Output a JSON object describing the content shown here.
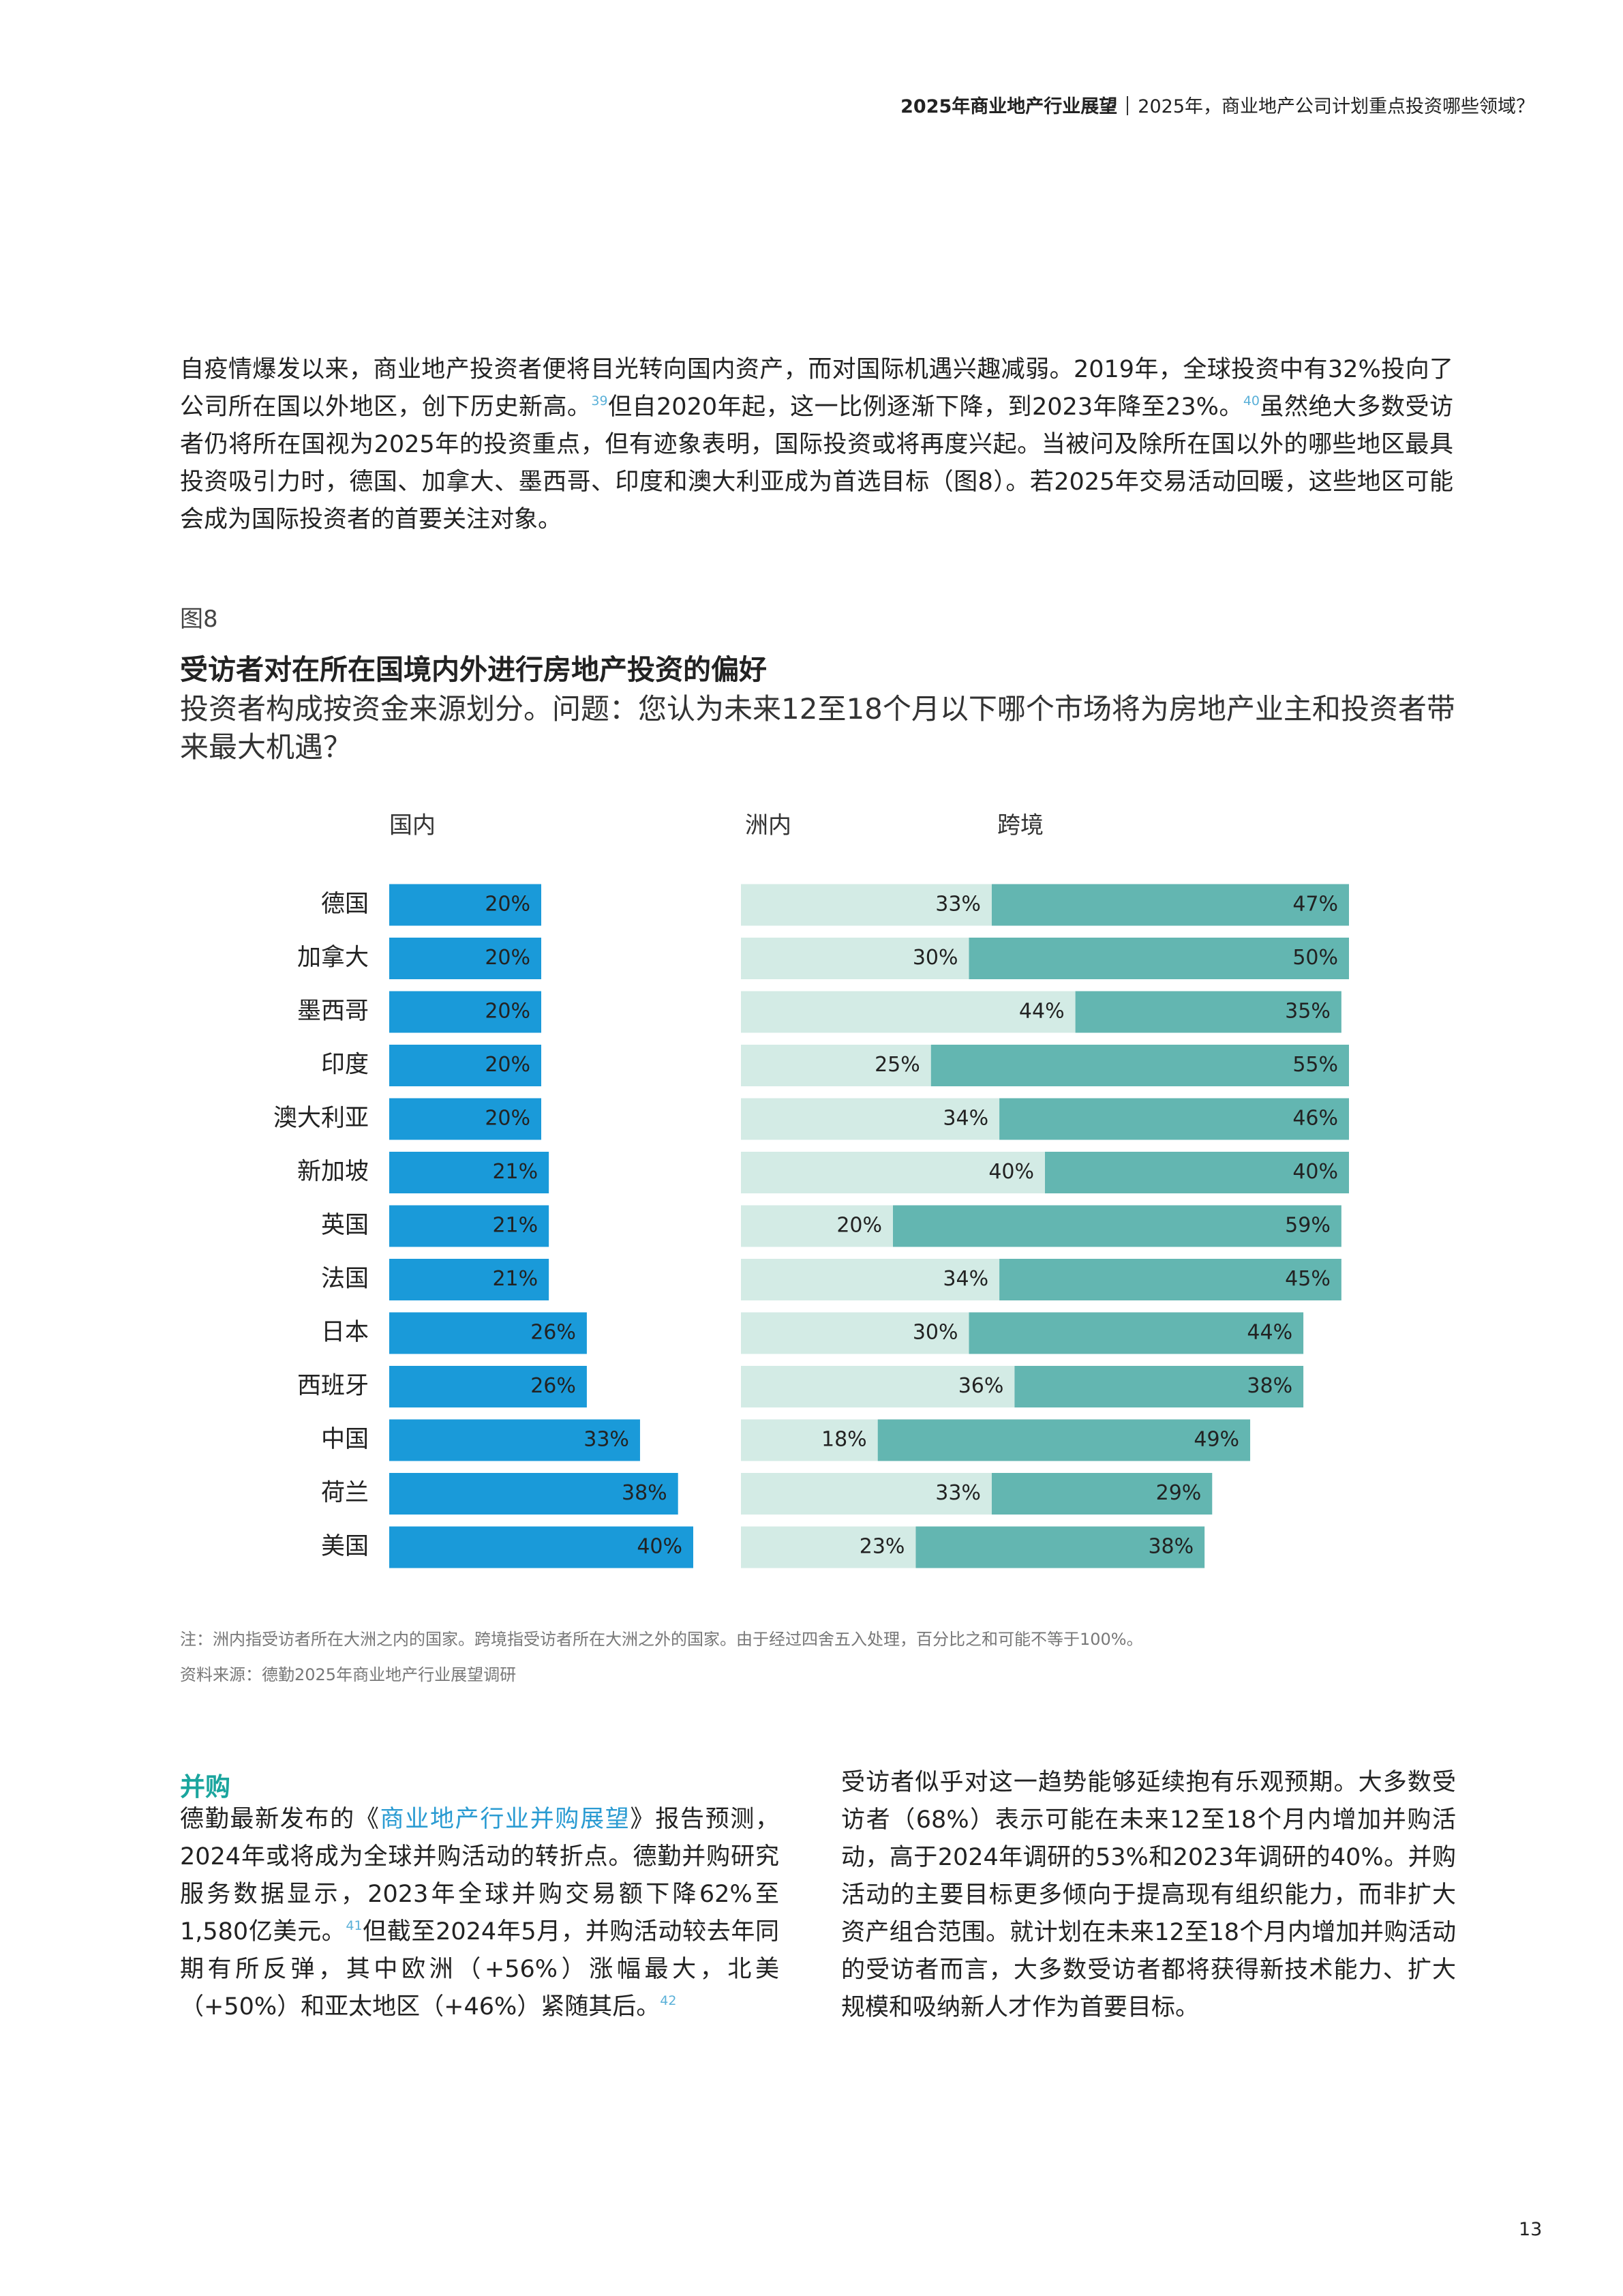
{
  "header": {
    "report": "2025年商业地产行业展望",
    "section": "2025年，商业地产公司计划重点投资哪些领域？"
  },
  "intro": [
    "自疫情爆发以来，商业地产投资者便将目光转向国内资产，而对国际机遇兴趣减弱。2019年，全球投资中有32%投向了公司所在国以外地区，创下历史新高。",
    "39",
    "但自2020年起，这一比例逐渐下降，到2023年降至23%。",
    "40",
    "虽然绝大多数受访者仍将所在国视为2025年的投资重点，但有迹象表明，国际投资或将再度兴起。当被问及除所在国以外的哪些地区最具投资吸引力时，德国、加拿大、墨西哥、印度和澳大利亚成为首选目标（图8）。若2025年交易活动回暖，这些地区可能会成为国际投资者的首要关注对象。"
  ],
  "figure": {
    "label": "图8",
    "title": "受访者对在所在国境内外进行房地产投资的偏好",
    "subtitle": "投资者构成按资金来源划分。问题：您认为未来12至18个月以下哪个市场将为房地产业主和投资者带来最大机遇？",
    "note": "注：洲内指受访者所在大洲之内的国家。跨境指受访者所在大洲之外的国家。由于经过四舍五入处理，百分比之和可能不等于100%。",
    "source": "资料来源：德勤2025年商业地产行业展望调研"
  },
  "chart_data": {
    "type": "bar",
    "orientation": "horizontal",
    "categories": [
      "德国",
      "加拿大",
      "墨西哥",
      "印度",
      "澳大利亚",
      "新加坡",
      "英国",
      "法国",
      "日本",
      "西班牙",
      "中国",
      "荷兰",
      "美国"
    ],
    "series": [
      {
        "name": "国内",
        "color": "#1a9ad9",
        "values": [
          20,
          20,
          20,
          20,
          20,
          21,
          21,
          21,
          26,
          26,
          33,
          38,
          40
        ],
        "value_labels": [
          "20%",
          "20%",
          "20%",
          "20%",
          "20%",
          "21%",
          "21%",
          "21%",
          "26%",
          "26%",
          "33%",
          "38%",
          "40%"
        ]
      },
      {
        "name": "洲内",
        "color": "#d3ebe5",
        "values": [
          33,
          30,
          44,
          25,
          34,
          40,
          20,
          34,
          30,
          36,
          18,
          33,
          23
        ],
        "value_labels": [
          "33%",
          "30%",
          "44%",
          "25%",
          "34%",
          "40%",
          "20%",
          "34%",
          "30%",
          "36%",
          "18%",
          "33%",
          "23%"
        ]
      },
      {
        "name": "跨境",
        "color": "#63b6b1",
        "values": [
          47,
          50,
          35,
          55,
          46,
          40,
          59,
          45,
          44,
          38,
          49,
          29,
          38
        ],
        "value_labels": [
          "47%",
          "50%",
          "35%",
          "55%",
          "46%",
          "40%",
          "59%",
          "45%",
          "44%",
          "38%",
          "49%",
          "29%",
          "38%"
        ]
      }
    ]
  },
  "ma": {
    "heading": "并购",
    "left": [
      "德勤最新发布的《",
      "商业地产行业并购展望",
      "》报告预测，2024年或将成为全球并购活动的转折点。德勤并购研究服务数据显示，2023年全球并购交易额下降62%至1,580亿美元。",
      "41",
      "但截至2024年5月，并购活动较去年同期有所反弹，其中欧洲（+56%）涨幅最大，北美（+50%）和亚太地区（+46%）紧随其后。",
      "42"
    ],
    "right": "受访者似乎对这一趋势能够延续抱有乐观预期。大多数受访者（68%）表示可能在未来12至18个月内增加并购活动，高于2024年调研的53%和2023年调研的40%。并购活动的主要目标更多倾向于提高现有组织能力，而非扩大资产组合范围。就计划在未来12至18个月内增加并购活动的受访者而言，大多数受访者都将获得新技术能力、扩大规模和吸纳新人才作为首要目标。"
  },
  "page_number": "13"
}
